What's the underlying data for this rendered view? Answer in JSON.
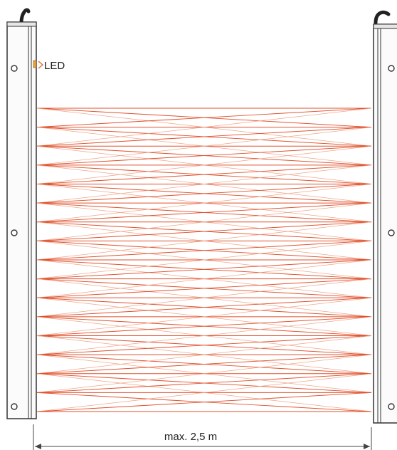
{
  "diagram": {
    "led_label": "LED",
    "dimension_label": "max. 2,5 m",
    "beam_count": 17,
    "colors": {
      "beam": "#e0502c",
      "beam_light": "#f2a58a",
      "frame": "#333333",
      "dimension": "#444444",
      "led_marker": "#e8a23a"
    }
  }
}
